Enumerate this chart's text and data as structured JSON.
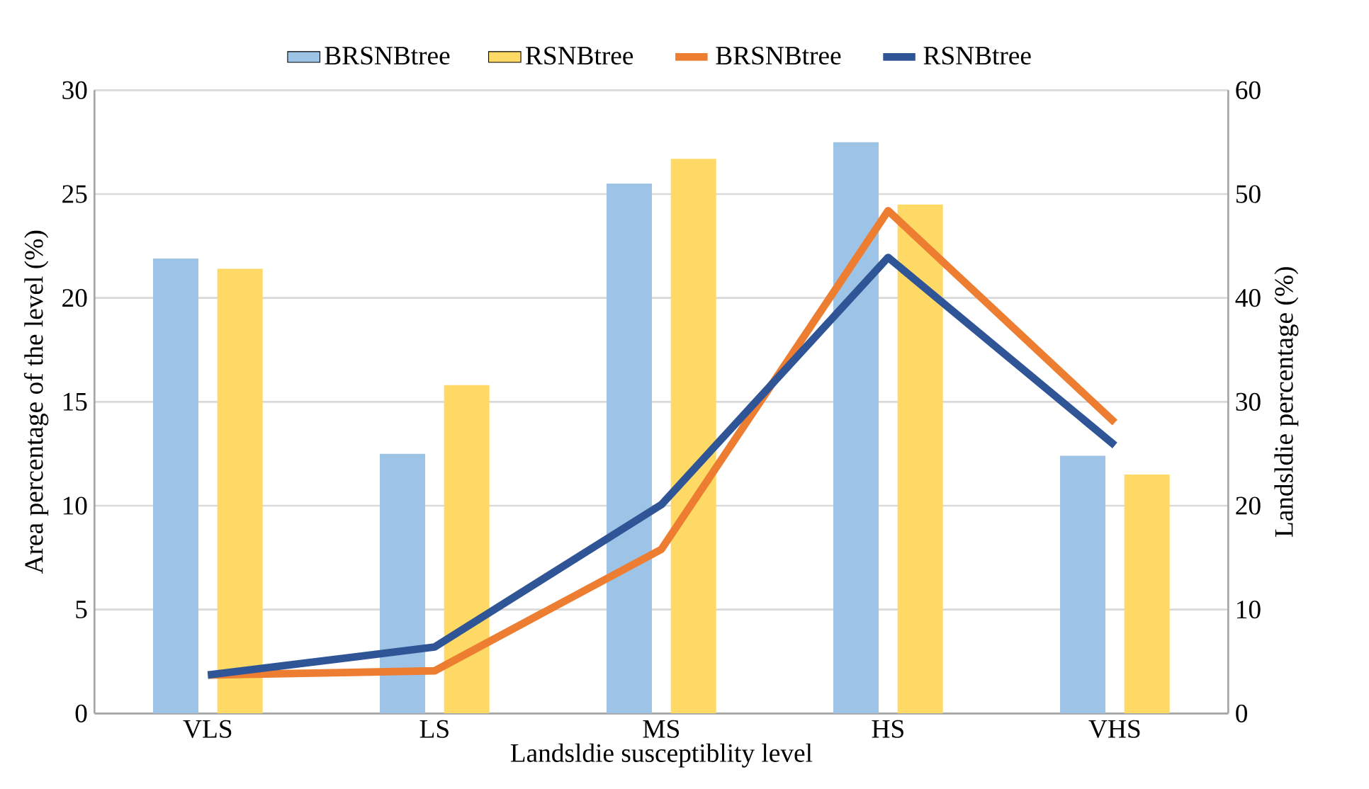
{
  "chart_data": {
    "type": "bar",
    "xlabel": "Landsldie susceptiblity level",
    "ylabel": "Area percentage of the level (%)",
    "y2label": "Landsldie percentage (%)",
    "categories": [
      "VLS",
      "LS",
      "MS",
      "HS",
      "VHS"
    ],
    "series": [
      {
        "name": "BRSNBtree",
        "color": "#9dc3e6",
        "values": [
          21.9,
          12.5,
          25.5,
          27.5,
          12.4
        ]
      },
      {
        "name": "RSNBtree",
        "color": "#ffd966",
        "values": [
          21.4,
          15.8,
          26.7,
          24.5,
          11.5
        ]
      },
      {
        "name": "BRSNBtree",
        "type": "line",
        "axis": "y2",
        "color": "#ed7d31",
        "values": [
          3.7,
          4.1,
          15.8,
          48.4,
          28.0
        ]
      },
      {
        "name": "RSNBtree",
        "type": "line",
        "axis": "y2",
        "color": "#2f5597",
        "values": [
          3.7,
          6.4,
          20.1,
          43.9,
          25.8
        ]
      }
    ],
    "ylim": [
      0,
      30
    ],
    "yticks": [
      0,
      5,
      10,
      15,
      20,
      25,
      30
    ],
    "y2lim": [
      0,
      60
    ],
    "y2ticks": [
      0,
      10,
      20,
      30,
      40,
      50,
      60
    ],
    "grid": "y",
    "legend": "top"
  }
}
